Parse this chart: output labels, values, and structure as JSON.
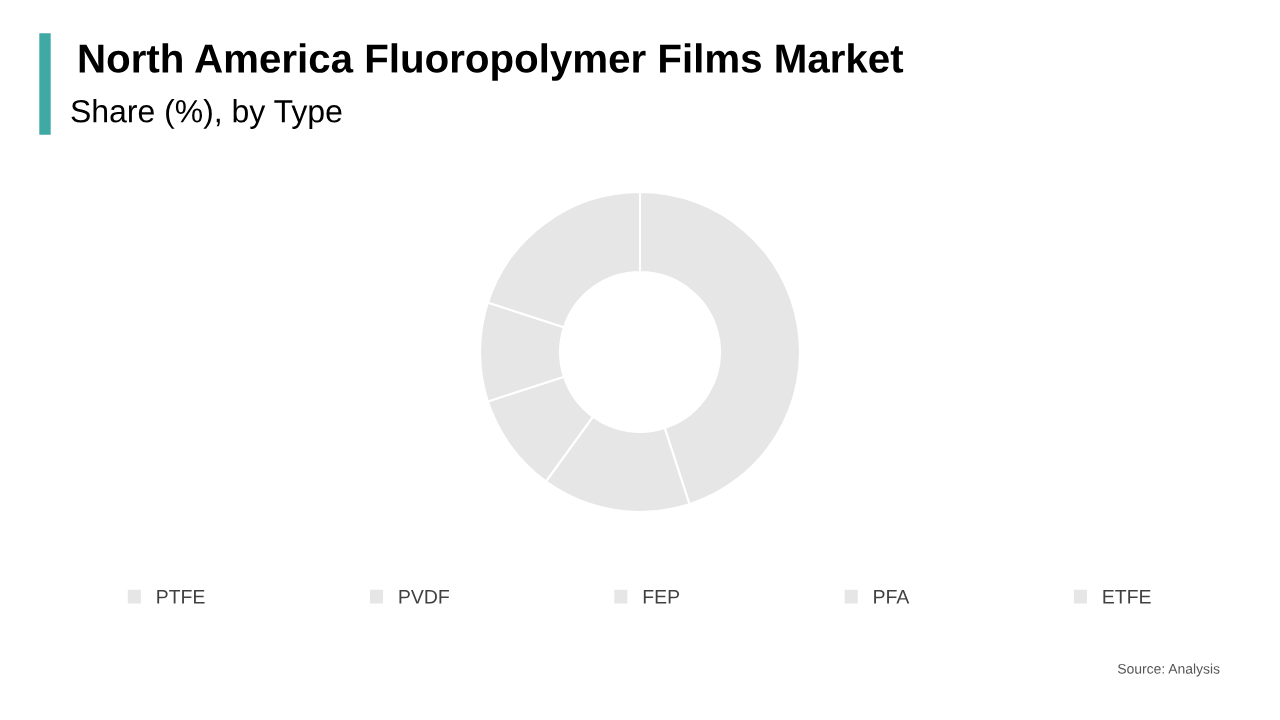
{
  "chart_data": {
    "type": "donut",
    "title": "North America Fluoropolymer Films Market",
    "subtitle": "Share (%), by Type",
    "categories": [
      "PTFE",
      "PVDF",
      "FEP",
      "PFA",
      "ETFE"
    ],
    "values": [
      45,
      15,
      10,
      10,
      20
    ],
    "colors": [
      "#e6e6e6",
      "#e6e6e6",
      "#e6e6e6",
      "#e6e6e6",
      "#e6e6e6"
    ],
    "legend": "bottom",
    "annotations": [
      "Source: Analysis"
    ]
  }
}
